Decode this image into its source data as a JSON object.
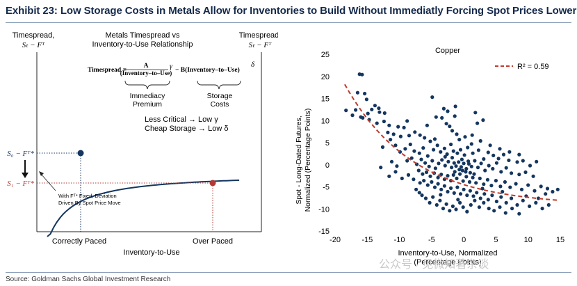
{
  "title": "Exhibit 23: Low Storage Costs in Metals Allow for Inventories to Build Without Immediatly Forcing Spot Prices Lower",
  "source": "Source: Goldman Sachs Global Investment Research",
  "watermark": "公众号 · 见微知著杂谈",
  "diagram": {
    "header": [
      "Metals Timespread vs",
      "Inventory-to-Use Relationship"
    ],
    "ylabel_left": "Timespread,",
    "ylabel_left_formula": "Sₜ − Fᵀ",
    "ylabel_right": "Timespread,",
    "ylabel_right_formula": "Sₜ − Fᵀ",
    "formula_lhs": "Timespread =",
    "formula_num": "A",
    "formula_den": "(Inventory–to–Use)",
    "formula_exp1": "γ",
    "formula_mid": "− B(Inventory–to–Use)",
    "formula_exp2": "δ",
    "brace1_label": [
      "Immediacy",
      "Premium"
    ],
    "brace2_label": [
      "Storage",
      "Costs"
    ],
    "note1": "Less Critical → Low γ",
    "note2": "Cheap Storage → Low δ",
    "s0_label": "S₀ − Fᵀ*",
    "s1_label": "S₁ − Fᵀ*",
    "annot_line1": "With Fᵀ* Fixed, Deviation",
    "annot_line2": "Driven By Spot Price Move",
    "xtick1": "Correctly Paced",
    "xtick2": "Over Paced",
    "xlabel": "Inventory-to-Use",
    "colors": {
      "curve": "#14365f",
      "point1": "#14365f",
      "point2": "#b13a34"
    }
  },
  "chart_data": {
    "type": "scatter",
    "title": "Copper",
    "xlabel": "Inventory-to-Use, Normalized (Percentage Points)",
    "ylabel": "Spot - Long-Dated Futures, Normalized (Percentage Points)",
    "xlim": [
      -20,
      15
    ],
    "ylim": [
      -15,
      25
    ],
    "xticks": [
      -20,
      -15,
      -10,
      -5,
      0,
      5,
      10,
      15
    ],
    "yticks": [
      -15,
      -10,
      -5,
      0,
      5,
      10,
      15,
      20,
      25
    ],
    "legend": {
      "label": "R² = 0.59",
      "position": "top-right"
    },
    "trendline": {
      "x_range": [
        -18.5,
        14.5
      ],
      "color": "#c0392b"
    },
    "point_color": "#14365f",
    "points": [
      [
        -16.2,
        20.5
      ],
      [
        -15.8,
        20.4
      ],
      [
        -16.5,
        16.3
      ],
      [
        -15.4,
        16.1
      ],
      [
        -15.1,
        14.8
      ],
      [
        -16.8,
        12.4
      ],
      [
        -17.3,
        11.2
      ],
      [
        -18.3,
        12.3
      ],
      [
        -16.0,
        10.8
      ],
      [
        -14.9,
        11.6
      ],
      [
        -14.3,
        12.5
      ],
      [
        -13.8,
        13.4
      ],
      [
        -13.2,
        12.8
      ],
      [
        -12.3,
        11.7
      ],
      [
        -14.7,
        10.2
      ],
      [
        -13.5,
        9.4
      ],
      [
        -12.4,
        9.8
      ],
      [
        -11.6,
        8.9
      ],
      [
        -10.2,
        8.6
      ],
      [
        -9.3,
        8.4
      ],
      [
        -11.8,
        7.3
      ],
      [
        -10.9,
        6.9
      ],
      [
        -9.8,
        6.4
      ],
      [
        -8.5,
        6.6
      ],
      [
        -7.6,
        7.4
      ],
      [
        -6.8,
        6.7
      ],
      [
        -6.1,
        6.1
      ],
      [
        -5.7,
        8.9
      ],
      [
        -5.2,
        5.3
      ],
      [
        -4.5,
        5.8
      ],
      [
        -4.9,
        15.3
      ],
      [
        -3.4,
        10.6
      ],
      [
        -2.7,
        9.3
      ],
      [
        -2.2,
        8.7
      ],
      [
        -1.8,
        7.7
      ],
      [
        -1.1,
        6.9
      ],
      [
        -0.7,
        5.7
      ],
      [
        0.2,
        6.3
      ],
      [
        1.3,
        6.7
      ],
      [
        2.1,
        9.4
      ],
      [
        3.0,
        10.1
      ],
      [
        1.8,
        11.8
      ],
      [
        -2.5,
        12.1
      ],
      [
        -1.4,
        11.0
      ],
      [
        -12.6,
        4.0
      ],
      [
        -11.4,
        5.7
      ],
      [
        -10.6,
        4.4
      ],
      [
        -9.9,
        2.9
      ],
      [
        -9.1,
        3.6
      ],
      [
        -8.3,
        4.6
      ],
      [
        -7.7,
        3.1
      ],
      [
        -6.9,
        2.6
      ],
      [
        -6.3,
        3.8
      ],
      [
        -5.6,
        2.0
      ],
      [
        -4.7,
        3.4
      ],
      [
        -4.1,
        4.4
      ],
      [
        -3.6,
        2.9
      ],
      [
        -3.0,
        3.7
      ],
      [
        -2.6,
        2.4
      ],
      [
        -2.0,
        4.6
      ],
      [
        -1.6,
        3.1
      ],
      [
        -1.0,
        2.6
      ],
      [
        -0.5,
        3.4
      ],
      [
        0.1,
        2.2
      ],
      [
        0.6,
        3.9
      ],
      [
        1.4,
        2.6
      ],
      [
        2.3,
        3.3
      ],
      [
        3.1,
        1.3
      ],
      [
        3.8,
        2.8
      ],
      [
        4.6,
        2.1
      ],
      [
        5.4,
        1.4
      ],
      [
        6.2,
        2.3
      ],
      [
        7.0,
        1.0
      ],
      [
        8.3,
        0.6
      ],
      [
        9.2,
        0.9
      ],
      [
        10.3,
        -0.2
      ],
      [
        11.3,
        0.7
      ],
      [
        -12.9,
        -0.6
      ],
      [
        -11.2,
        0.7
      ],
      [
        -10.4,
        -0.3
      ],
      [
        -8.8,
        0.9
      ],
      [
        -8.1,
        1.5
      ],
      [
        -7.3,
        0.1
      ],
      [
        -6.6,
        1.2
      ],
      [
        -6.0,
        0.4
      ],
      [
        -5.4,
        -0.4
      ],
      [
        -4.9,
        0.9
      ],
      [
        -4.4,
        -0.8
      ],
      [
        -3.9,
        0.3
      ],
      [
        -3.4,
        1.1
      ],
      [
        -2.9,
        -0.2
      ],
      [
        -2.4,
        0.7
      ],
      [
        -1.9,
        -0.6
      ],
      [
        -1.5,
        0.4
      ],
      [
        -1.2,
        -0.3
      ],
      [
        -0.8,
        0.6
      ],
      [
        -0.4,
        -0.5
      ],
      [
        0.0,
        0.3
      ],
      [
        0.4,
        -0.9
      ],
      [
        0.8,
        0.2
      ],
      [
        1.2,
        -0.4
      ],
      [
        1.7,
        0.9
      ],
      [
        2.2,
        -0.6
      ],
      [
        2.7,
        0.3
      ],
      [
        3.3,
        -1.3
      ],
      [
        3.9,
        -0.2
      ],
      [
        4.5,
        -0.9
      ],
      [
        5.1,
        0.4
      ],
      [
        5.8,
        -1.6
      ],
      [
        6.6,
        -0.7
      ],
      [
        7.4,
        -1.9
      ],
      [
        8.6,
        -2.2
      ],
      [
        9.6,
        -1.7
      ],
      [
        10.8,
        -2.6
      ],
      [
        -7.0,
        -1.3
      ],
      [
        -6.4,
        -2.1
      ],
      [
        -5.8,
        -1.7
      ],
      [
        -5.2,
        -2.6
      ],
      [
        -4.6,
        -1.9
      ],
      [
        -4.0,
        -2.9
      ],
      [
        -3.5,
        -2.2
      ],
      [
        -3.0,
        -3.3
      ],
      [
        -2.5,
        -2.5
      ],
      [
        -2.0,
        -3.6
      ],
      [
        -1.6,
        -2.3
      ],
      [
        -1.1,
        -3.1
      ],
      [
        -0.6,
        -2.1
      ],
      [
        -0.1,
        -3.7
      ],
      [
        0.4,
        -2.7
      ],
      [
        0.9,
        -3.9
      ],
      [
        1.4,
        -2.9
      ],
      [
        1.9,
        -4.1
      ],
      [
        2.5,
        -3.1
      ],
      [
        3.1,
        -4.4
      ],
      [
        3.7,
        -3.4
      ],
      [
        4.3,
        -4.7
      ],
      [
        5.0,
        -3.6
      ],
      [
        5.7,
        -4.9
      ],
      [
        6.4,
        -3.9
      ],
      [
        7.2,
        -5.1
      ],
      [
        8.1,
        -4.3
      ],
      [
        9.0,
        -5.6
      ],
      [
        10.0,
        -4.6
      ],
      [
        11.0,
        -5.9
      ],
      [
        12.0,
        -4.9
      ],
      [
        13.0,
        -5.4
      ],
      [
        13.8,
        -6.1
      ],
      [
        14.6,
        -5.6
      ],
      [
        -6.8,
        -4.1
      ],
      [
        -6.2,
        -3.6
      ],
      [
        -5.6,
        -4.6
      ],
      [
        -5.0,
        -3.9
      ],
      [
        -4.5,
        -5.1
      ],
      [
        -4.0,
        -4.3
      ],
      [
        -3.5,
        -5.6
      ],
      [
        -3.0,
        -4.8
      ],
      [
        -2.5,
        -6.1
      ],
      [
        -2.0,
        -5.3
      ],
      [
        -1.5,
        -6.4
      ],
      [
        -1.0,
        -5.1
      ],
      [
        -0.5,
        -6.6
      ],
      [
        0.0,
        -5.6
      ],
      [
        0.5,
        -6.9
      ],
      [
        1.0,
        -5.9
      ],
      [
        1.5,
        -7.1
      ],
      [
        2.0,
        -6.3
      ],
      [
        2.6,
        -7.6
      ],
      [
        3.2,
        -6.6
      ],
      [
        3.8,
        -7.9
      ],
      [
        4.4,
        -6.9
      ],
      [
        5.1,
        -8.3
      ],
      [
        5.8,
        -7.3
      ],
      [
        6.6,
        -8.6
      ],
      [
        7.4,
        -7.6
      ],
      [
        8.3,
        -9.1
      ],
      [
        9.2,
        -8.1
      ],
      [
        10.2,
        -9.4
      ],
      [
        11.2,
        -8.6
      ],
      [
        12.2,
        -9.9
      ],
      [
        13.2,
        -9.1
      ],
      [
        -6.5,
        -6.9
      ],
      [
        -5.9,
        -7.6
      ],
      [
        -5.3,
        -8.6
      ],
      [
        -4.8,
        -7.3
      ],
      [
        -4.2,
        -9.1
      ],
      [
        -3.7,
        -8.1
      ],
      [
        -3.2,
        -9.9
      ],
      [
        -2.7,
        -8.9
      ],
      [
        -2.2,
        -10.4
      ],
      [
        -1.7,
        -9.4
      ],
      [
        -1.2,
        -10.1
      ],
      [
        -0.6,
        -8.6
      ],
      [
        -0.1,
        -9.6
      ],
      [
        0.5,
        -10.6
      ],
      [
        1.1,
        -9.1
      ],
      [
        1.7,
        -8.1
      ],
      [
        2.4,
        -9.6
      ],
      [
        3.1,
        -8.6
      ],
      [
        3.9,
        -9.9
      ],
      [
        4.7,
        -10.4
      ],
      [
        5.6,
        -9.6
      ],
      [
        6.5,
        -10.9
      ],
      [
        7.5,
        -9.9
      ],
      [
        8.6,
        -11.1
      ],
      [
        -11.6,
        -2.6
      ],
      [
        -10.6,
        -1.6
      ],
      [
        -9.6,
        -3.1
      ],
      [
        -8.6,
        -2.3
      ],
      [
        -7.8,
        -3.3
      ],
      [
        -7.4,
        -5.6
      ],
      [
        -6.9,
        -6.3
      ],
      [
        1.2,
        4.7
      ],
      [
        2.6,
        5.4
      ],
      [
        4.1,
        4.4
      ],
      [
        5.6,
        3.6
      ],
      [
        7.1,
        2.9
      ],
      [
        8.6,
        2.3
      ],
      [
        -2.9,
        1.8
      ],
      [
        -1.8,
        1.6
      ],
      [
        -0.3,
        1.2
      ],
      [
        0.7,
        0.8
      ],
      [
        -3.6,
        -6.8
      ],
      [
        -0.9,
        -7.9
      ],
      [
        2.9,
        -5.4
      ],
      [
        6.0,
        -6.1
      ],
      [
        9.7,
        -7.1
      ],
      [
        11.6,
        -7.6
      ],
      [
        12.7,
        -6.6
      ],
      [
        -4.3,
        10.8
      ],
      [
        -3.1,
        12.7
      ],
      [
        -1.3,
        13.2
      ],
      [
        -8.8,
        9.9
      ],
      [
        -13.1,
        11.9
      ],
      [
        -15.7,
        10.6
      ],
      [
        -0.2,
        -1.3
      ],
      [
        0.3,
        -1.6
      ],
      [
        -0.7,
        -1.1
      ],
      [
        1.0,
        -1.8
      ],
      [
        -1.4,
        -1.6
      ],
      [
        1.6,
        -2.1
      ]
    ]
  }
}
